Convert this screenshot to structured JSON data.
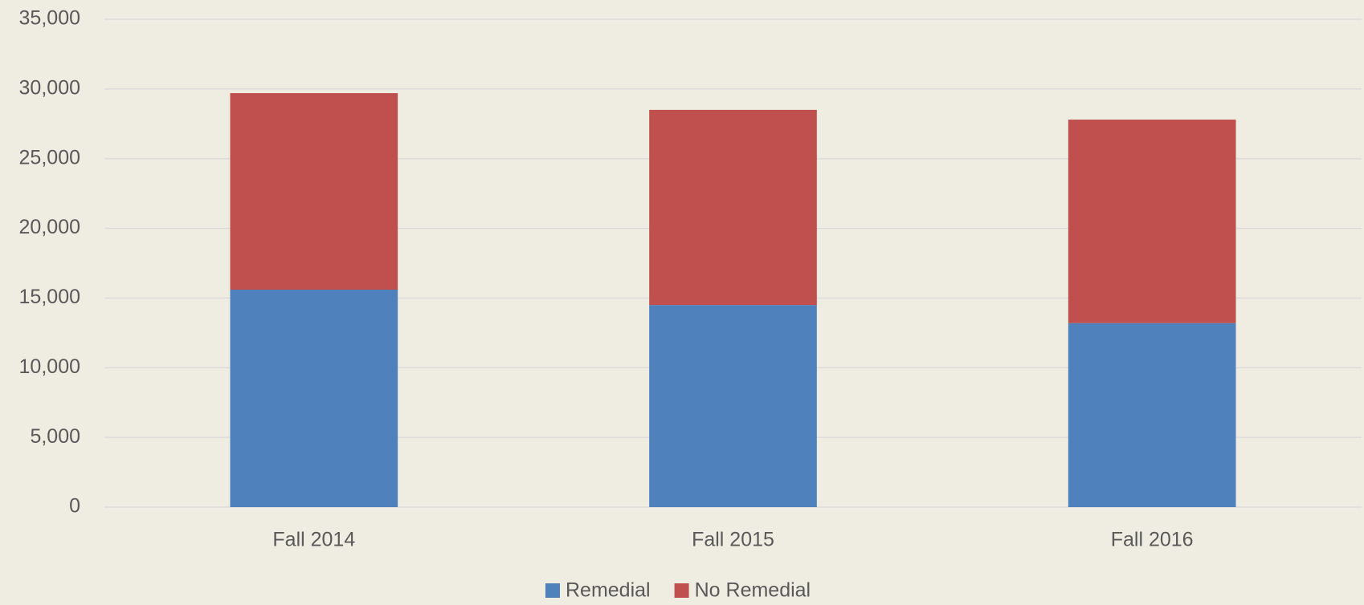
{
  "chart_data": {
    "type": "stacked_bar",
    "categories": [
      "Fall 2014",
      "Fall 2015",
      "Fall 2016"
    ],
    "series": [
      {
        "name": "Remedial",
        "color": "#4f81bd",
        "values": [
          15600,
          14500,
          13200
        ]
      },
      {
        "name": "No Remedial",
        "color": "#c0504d",
        "values": [
          14100,
          14000,
          14600
        ]
      }
    ],
    "ylim": [
      0,
      35000
    ],
    "yticks": [
      0,
      {
        "value": 5000,
        "label": "5,000"
      },
      {
        "value": 10000,
        "label": "10,000"
      },
      {
        "value": 15000,
        "label": "15,000"
      },
      {
        "value": 20000,
        "label": "20,000"
      },
      {
        "value": 25000,
        "label": "25,000"
      },
      {
        "value": 30000,
        "label": "30,000"
      },
      {
        "value": 35000,
        "label": "35,000"
      }
    ],
    "grid": true,
    "legend": "bottom"
  }
}
